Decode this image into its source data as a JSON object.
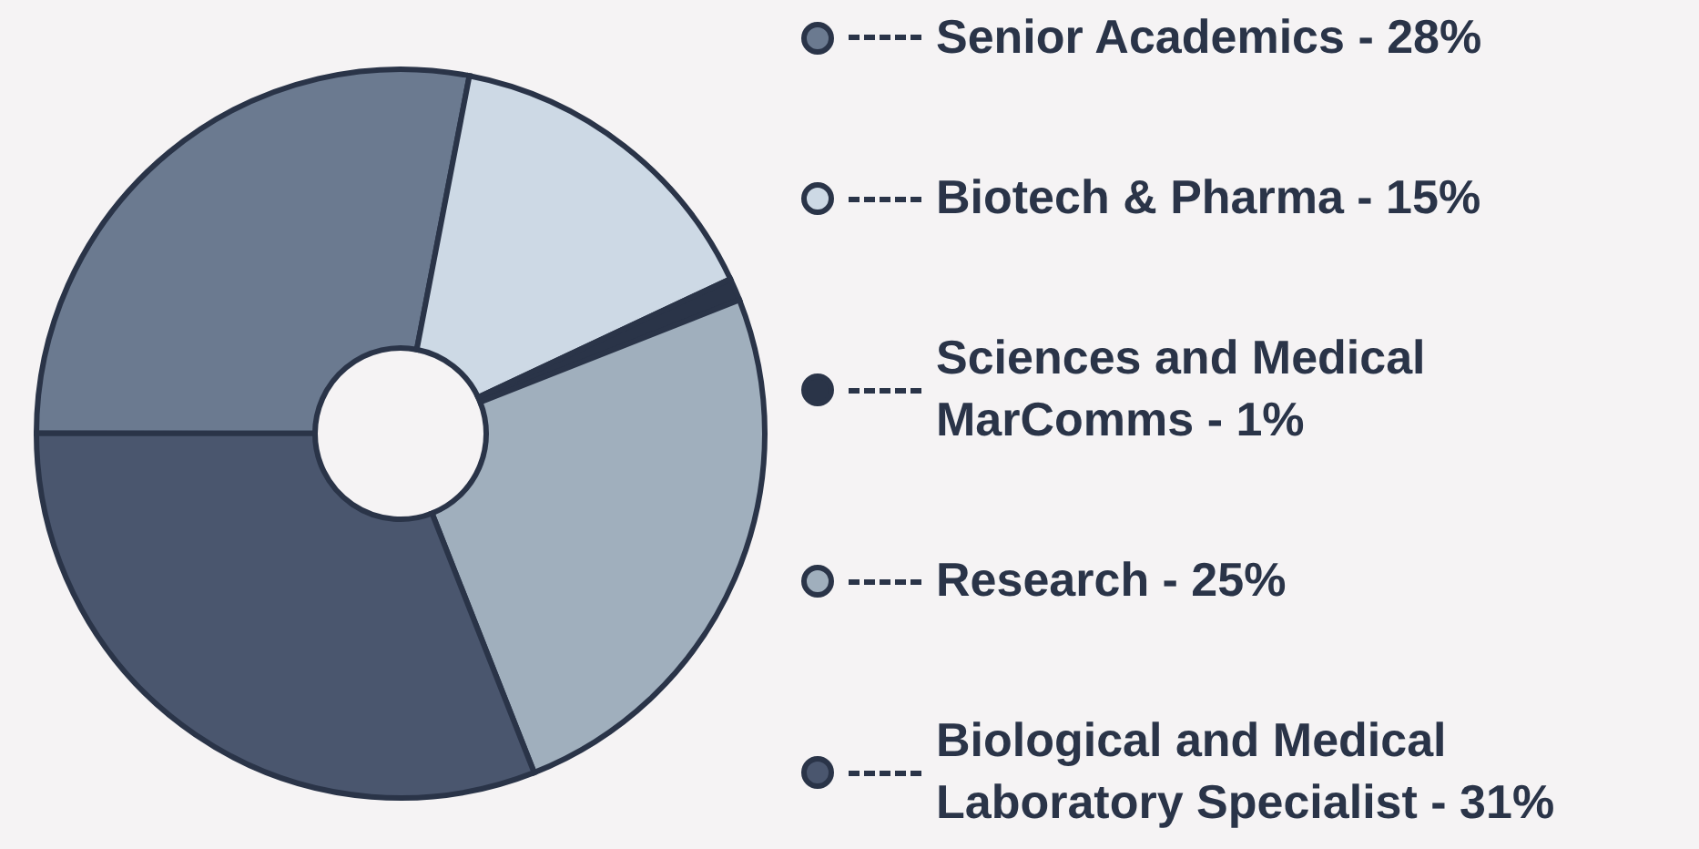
{
  "chart_data": {
    "type": "donut",
    "categories": [
      "Senior Academics",
      "Biotech & Pharma",
      "Sciences and Medical MarComms",
      "Research",
      "Biological and Medical Laboratory Specialist"
    ],
    "values": [
      28,
      15,
      1,
      25,
      31
    ],
    "value_labels": [
      "28%",
      "15%",
      "1%",
      "25%",
      "31%"
    ],
    "colors": [
      "#6b7a90",
      "#cdd9e5",
      "#2a3448",
      "#a0afbd",
      "#4a566e"
    ],
    "legend": "right"
  }
}
